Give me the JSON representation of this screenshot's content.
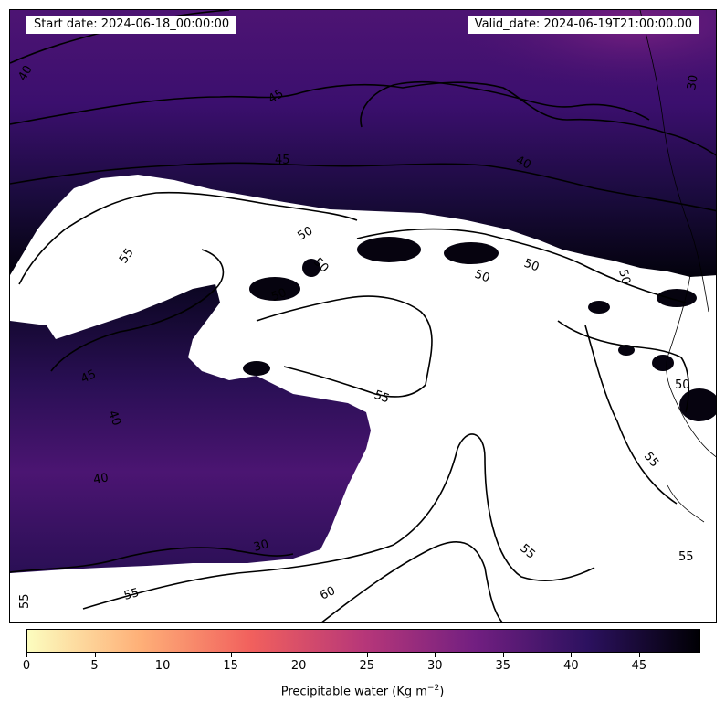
{
  "header": {
    "start_date": "Start date: 2024-06-18_00:00:00",
    "valid_date": "Valid_date: 2024-06-19T21:00:00.00"
  },
  "colorbar": {
    "colormap": "magma_r",
    "min": 0,
    "max": 49.5,
    "ticks": [
      0,
      5,
      10,
      15,
      20,
      25,
      30,
      35,
      40,
      45
    ],
    "label_main": "Precipitable water (Kg m",
    "label_sup": "−2",
    "label_end": ")",
    "colors": [
      "#fcfdbf",
      "#feb078",
      "#f1605d",
      "#b73779",
      "#721f81",
      "#2c115f",
      "#000004"
    ]
  },
  "contour_labels": [
    "40",
    "45",
    "45",
    "40",
    "30",
    "50",
    "50",
    "55",
    "50",
    "50",
    "50",
    "50",
    "45",
    "40",
    "55",
    "40",
    "50",
    "55",
    "30",
    "55",
    "60",
    "55",
    "55",
    "55"
  ],
  "field_values": {
    "white_region": "> 49.5",
    "north_band": [
      35,
      40,
      45
    ],
    "west_lobe": [
      38,
      40,
      45
    ],
    "northeast_corner": 28
  }
}
